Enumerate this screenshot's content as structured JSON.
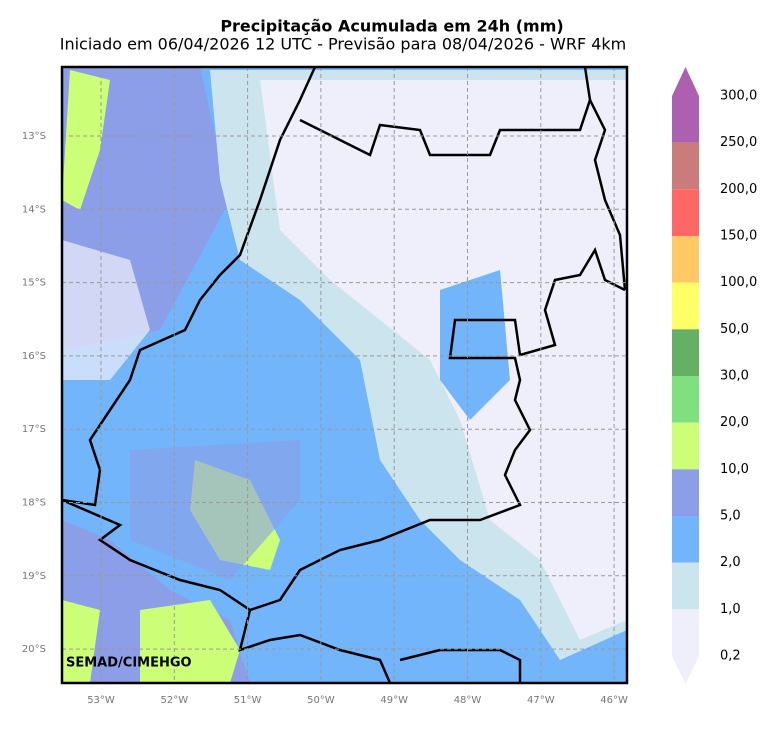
{
  "header": {
    "title": "Precipitação Acumulada em 24h (mm)",
    "subtitle": "Iniciado em 06/04/2026 12 UTC - Previsão para 08/04/2026 - WRF 4km"
  },
  "map": {
    "credit": "SEMAD/CIMEHGO",
    "lat_labels": [
      "13°S",
      "14°S",
      "15°S",
      "16°S",
      "17°S",
      "18°S",
      "19°S",
      "20°S"
    ],
    "lon_labels": [
      "53°W",
      "52°W",
      "51°W",
      "50°W",
      "49°W",
      "48°W",
      "47°W",
      "46°W"
    ]
  },
  "colorbar": {
    "labels": [
      "300,0",
      "250,0",
      "200,0",
      "150,0",
      "100,0",
      "50,0",
      "30,0",
      "20,0",
      "10,0",
      "5,0",
      "2,0",
      "1,0",
      "0,2"
    ],
    "colors": [
      "#ad60b0",
      "#cc7b7b",
      "#ff6666",
      "#ffc966",
      "#ffff66",
      "#66b066",
      "#80e080",
      "#ccff77",
      "#8c9ee8",
      "#72b5fb",
      "#cce4ee",
      "#efeffb"
    ]
  }
}
